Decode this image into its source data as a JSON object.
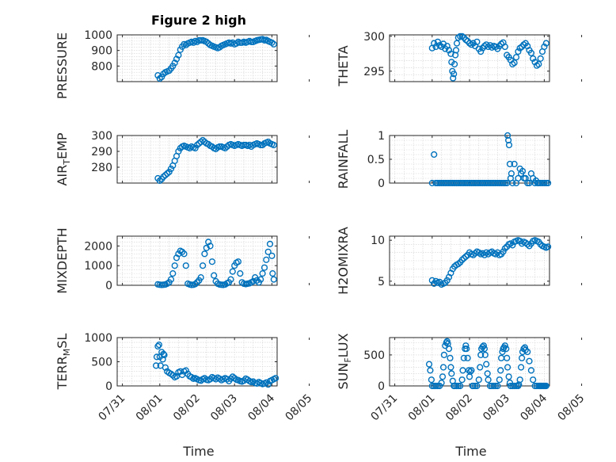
{
  "title": "Figure 2 high",
  "xlabel": "Time",
  "x_ticks": [
    "07/31",
    "08/01",
    "08/02",
    "08/03",
    "08/04",
    "08/05"
  ],
  "colors": {
    "marker": "#0072bd",
    "axes": "#262626",
    "grid": "#d2d2d2"
  },
  "chart_data": [
    {
      "type": "scatter",
      "panel": "left-1",
      "ylabel": "PRESSURE",
      "xlim": [
        -0.14,
        4.14
      ],
      "ylim": [
        700,
        1000
      ],
      "yticks": [
        800,
        900,
        1000
      ],
      "ytick_labels": [
        "800",
        "900",
        "1000"
      ],
      "x_tick_labels_shown": false,
      "grid": true,
      "x": [
        0.95,
        1.0,
        1.05,
        1.1,
        1.15,
        1.2,
        1.25,
        1.3,
        1.35,
        1.4,
        1.45,
        1.5,
        1.55,
        1.6,
        1.65,
        1.7,
        1.75,
        1.8,
        1.85,
        1.9,
        1.95,
        2.0,
        2.05,
        2.1,
        2.15,
        2.2,
        2.25,
        2.3,
        2.35,
        2.4,
        2.45,
        2.5,
        2.55,
        2.6,
        2.65,
        2.7,
        2.75,
        2.8,
        2.85,
        2.9,
        2.95,
        3.0,
        3.05,
        3.1,
        3.15,
        3.2,
        3.25,
        3.3,
        3.35,
        3.4,
        3.45,
        3.5,
        3.55,
        3.6,
        3.65,
        3.7,
        3.75,
        3.8,
        3.85,
        3.9,
        3.95,
        4.0,
        4.05
      ],
      "y": [
        740,
        720,
        730,
        750,
        760,
        765,
        770,
        785,
        800,
        820,
        845,
        870,
        905,
        925,
        940,
        935,
        945,
        950,
        955,
        950,
        960,
        955,
        965,
        965,
        965,
        960,
        955,
        945,
        935,
        930,
        925,
        920,
        915,
        920,
        930,
        935,
        940,
        945,
        950,
        945,
        950,
        940,
        945,
        955,
        950,
        950,
        955,
        950,
        955,
        960,
        955,
        955,
        960,
        965,
        968,
        970,
        972,
        965,
        968,
        960,
        955,
        950,
        940
      ]
    },
    {
      "type": "scatter",
      "panel": "right-1",
      "ylabel": "THETA",
      "xlim": [
        -0.14,
        4.14
      ],
      "ylim": [
        293.5,
        300.2
      ],
      "yticks": [
        295,
        300
      ],
      "ytick_labels": [
        "295",
        "300"
      ],
      "x_tick_labels_shown": false,
      "grid": true,
      "x": [
        1.0,
        1.05,
        1.1,
        1.15,
        1.2,
        1.25,
        1.3,
        1.35,
        1.4,
        1.45,
        1.5,
        1.52,
        1.54,
        1.56,
        1.58,
        1.6,
        1.62,
        1.64,
        1.66,
        1.7,
        1.75,
        1.8,
        1.85,
        1.9,
        1.95,
        2.0,
        2.05,
        2.1,
        2.15,
        2.2,
        2.25,
        2.3,
        2.35,
        2.4,
        2.45,
        2.5,
        2.55,
        2.6,
        2.65,
        2.7,
        2.75,
        2.8,
        2.85,
        2.9,
        2.95,
        3.0,
        3.05,
        3.1,
        3.15,
        3.2,
        3.25,
        3.3,
        3.35,
        3.4,
        3.45,
        3.5,
        3.55,
        3.6,
        3.65,
        3.7,
        3.75,
        3.8,
        3.85,
        3.9,
        3.95,
        4.0,
        4.05
      ],
      "y": [
        298.3,
        299.0,
        298.5,
        299.2,
        298.7,
        298.5,
        298.9,
        298.2,
        298.6,
        298.0,
        297.5,
        296.3,
        295.0,
        294.0,
        294.6,
        296.0,
        297.3,
        298.0,
        299.0,
        299.8,
        300.0,
        300.0,
        299.8,
        299.5,
        299.3,
        299.0,
        298.8,
        299.0,
        298.6,
        299.2,
        298.2,
        297.8,
        298.3,
        298.6,
        298.8,
        298.5,
        298.7,
        298.4,
        298.6,
        298.5,
        298.2,
        298.6,
        298.9,
        299.1,
        298.5,
        297.3,
        297.0,
        296.6,
        296.0,
        296.2,
        297.0,
        297.8,
        298.3,
        298.5,
        298.8,
        299.0,
        298.6,
        298.0,
        297.6,
        296.8,
        296.3,
        295.8,
        296.0,
        296.8,
        297.8,
        298.5,
        299.0
      ]
    },
    {
      "type": "scatter",
      "panel": "left-2",
      "ylabel": "AIR_TEMP",
      "xlim": [
        -0.14,
        4.14
      ],
      "ylim": [
        270,
        300
      ],
      "yticks": [
        280,
        290,
        300
      ],
      "ytick_labels": [
        "280",
        "290",
        "300"
      ],
      "x_tick_labels_shown": false,
      "grid": true,
      "x": [
        0.95,
        1.0,
        1.05,
        1.1,
        1.15,
        1.2,
        1.25,
        1.3,
        1.35,
        1.4,
        1.45,
        1.5,
        1.55,
        1.6,
        1.65,
        1.7,
        1.75,
        1.8,
        1.85,
        1.9,
        1.95,
        2.0,
        2.05,
        2.1,
        2.15,
        2.2,
        2.25,
        2.3,
        2.35,
        2.4,
        2.45,
        2.5,
        2.55,
        2.6,
        2.65,
        2.7,
        2.75,
        2.8,
        2.85,
        2.9,
        2.95,
        3.0,
        3.05,
        3.1,
        3.15,
        3.2,
        3.25,
        3.3,
        3.35,
        3.4,
        3.45,
        3.5,
        3.55,
        3.6,
        3.65,
        3.7,
        3.75,
        3.8,
        3.85,
        3.9,
        3.95,
        4.0,
        4.05
      ],
      "y": [
        273,
        271.5,
        272.5,
        274,
        275,
        276,
        277,
        279,
        281,
        284,
        287,
        290,
        292,
        293,
        293.5,
        293,
        292.5,
        292,
        293,
        292.5,
        292,
        294,
        295,
        296,
        297,
        296,
        295,
        294.5,
        293.5,
        293,
        292,
        291.5,
        292.5,
        293,
        293,
        292.5,
        292,
        293,
        294,
        294.5,
        294,
        293.5,
        294,
        294.5,
        294,
        293.5,
        294,
        294,
        293.5,
        294,
        293,
        294,
        294.5,
        295,
        294.5,
        294,
        294,
        295,
        295.5,
        296,
        295,
        294.5,
        294
      ]
    },
    {
      "type": "scatter",
      "panel": "right-2",
      "ylabel": "RAINFALL",
      "xlim": [
        -0.14,
        4.14
      ],
      "ylim": [
        0,
        1
      ],
      "yticks": [
        0,
        0.5,
        1
      ],
      "ytick_labels": [
        "0",
        "0.5",
        "1"
      ],
      "x_tick_labels_shown": false,
      "grid": true,
      "x": [
        1.0,
        1.05,
        1.1,
        1.15,
        1.2,
        1.25,
        1.3,
        1.35,
        1.4,
        1.45,
        1.5,
        1.55,
        1.6,
        1.65,
        1.7,
        1.75,
        1.8,
        1.85,
        1.9,
        1.95,
        2.0,
        2.05,
        2.1,
        2.15,
        2.2,
        2.25,
        2.3,
        2.35,
        2.4,
        2.45,
        2.5,
        2.55,
        2.6,
        2.65,
        2.7,
        2.75,
        2.8,
        2.85,
        2.9,
        2.95,
        3.0,
        3.02,
        3.04,
        3.06,
        3.08,
        3.1,
        3.12,
        3.15,
        3.2,
        3.25,
        3.3,
        3.35,
        3.38,
        3.42,
        3.46,
        3.5,
        3.55,
        3.6,
        3.65,
        3.7,
        3.75,
        3.78,
        3.82,
        3.85,
        3.9,
        3.95,
        4.0,
        4.05,
        4.1
      ],
      "y": [
        0,
        0.6,
        0,
        0,
        0,
        0,
        0,
        0,
        0,
        0,
        0,
        0,
        0,
        0,
        0,
        0,
        0,
        0,
        0,
        0,
        0,
        0,
        0,
        0,
        0,
        0,
        0,
        0,
        0,
        0,
        0,
        0,
        0,
        0,
        0,
        0,
        0,
        0,
        0,
        0,
        0,
        1.0,
        0.9,
        0.8,
        0.4,
        0.1,
        0.2,
        0,
        0.4,
        0,
        0.1,
        0.3,
        0.2,
        0.25,
        0.1,
        0.1,
        0,
        0,
        0.2,
        0.1,
        0,
        0.05,
        0,
        0,
        0,
        0,
        0,
        0,
        0
      ]
    },
    {
      "type": "scatter",
      "panel": "left-3",
      "ylabel": "MIXDEPTH",
      "xlim": [
        -0.14,
        4.14
      ],
      "ylim": [
        0,
        2500
      ],
      "yticks": [
        0,
        1000,
        2000
      ],
      "ytick_labels": [
        "0",
        "1000",
        "2000"
      ],
      "x_tick_labels_shown": false,
      "grid": true,
      "x": [
        0.95,
        1.0,
        1.05,
        1.1,
        1.15,
        1.2,
        1.25,
        1.3,
        1.35,
        1.4,
        1.45,
        1.5,
        1.55,
        1.6,
        1.65,
        1.7,
        1.75,
        1.8,
        1.85,
        1.9,
        1.95,
        2.0,
        2.05,
        2.1,
        2.15,
        2.2,
        2.25,
        2.3,
        2.35,
        2.4,
        2.45,
        2.5,
        2.55,
        2.6,
        2.65,
        2.7,
        2.75,
        2.8,
        2.85,
        2.9,
        2.95,
        3.0,
        3.05,
        3.1,
        3.15,
        3.2,
        3.25,
        3.3,
        3.35,
        3.4,
        3.45,
        3.5,
        3.55,
        3.6,
        3.65,
        3.7,
        3.75,
        3.8,
        3.85,
        3.9,
        3.95,
        4.0,
        4.02,
        4.05
      ],
      "y": [
        50,
        30,
        20,
        30,
        40,
        80,
        150,
        300,
        600,
        1000,
        1400,
        1600,
        1750,
        1700,
        1600,
        1000,
        80,
        40,
        20,
        30,
        60,
        150,
        250,
        400,
        1000,
        1600,
        1900,
        2200,
        2000,
        1200,
        500,
        200,
        80,
        40,
        30,
        20,
        40,
        100,
        150,
        300,
        700,
        1000,
        1150,
        1200,
        600,
        150,
        80,
        60,
        80,
        100,
        150,
        200,
        400,
        250,
        150,
        300,
        600,
        900,
        1300,
        1700,
        2100,
        1500,
        600,
        300
      ]
    },
    {
      "type": "scatter",
      "panel": "right-3",
      "ylabel": "H2OMIXRA",
      "xlim": [
        -0.14,
        4.14
      ],
      "ylim": [
        4.5,
        10.5
      ],
      "yticks": [
        5,
        10
      ],
      "ytick_labels": [
        "5",
        "10"
      ],
      "x_tick_labels_shown": false,
      "grid": true,
      "x": [
        1.0,
        1.05,
        1.1,
        1.15,
        1.2,
        1.25,
        1.3,
        1.35,
        1.4,
        1.45,
        1.5,
        1.55,
        1.6,
        1.65,
        1.7,
        1.75,
        1.8,
        1.85,
        1.9,
        1.95,
        2.0,
        2.05,
        2.1,
        2.15,
        2.2,
        2.25,
        2.3,
        2.35,
        2.4,
        2.45,
        2.5,
        2.55,
        2.6,
        2.65,
        2.7,
        2.75,
        2.8,
        2.85,
        2.9,
        2.95,
        3.0,
        3.05,
        3.1,
        3.15,
        3.2,
        3.25,
        3.3,
        3.35,
        3.4,
        3.45,
        3.5,
        3.55,
        3.6,
        3.65,
        3.7,
        3.75,
        3.8,
        3.85,
        3.9,
        3.95,
        4.0,
        4.05,
        4.1
      ],
      "y": [
        5.1,
        4.7,
        5.0,
        4.8,
        4.9,
        4.6,
        4.7,
        4.8,
        5.1,
        5.5,
        6.0,
        6.5,
        6.8,
        7.0,
        7.1,
        7.3,
        7.6,
        7.8,
        8.0,
        8.2,
        8.5,
        8.3,
        8.2,
        8.4,
        8.6,
        8.5,
        8.3,
        8.4,
        8.2,
        8.5,
        8.3,
        8.5,
        8.6,
        8.4,
        8.3,
        8.5,
        8.2,
        8.3,
        8.6,
        9.0,
        9.2,
        9.5,
        9.6,
        9.4,
        9.8,
        9.9,
        10.0,
        9.9,
        9.6,
        9.8,
        9.7,
        9.5,
        9.3,
        9.6,
        9.9,
        10.0,
        9.9,
        9.8,
        9.5,
        9.3,
        9.2,
        9.1,
        9.2
      ]
    },
    {
      "type": "scatter",
      "panel": "left-4",
      "ylabel": "TERR_MSL",
      "xlim": [
        -0.14,
        4.14
      ],
      "ylim": [
        0,
        1000
      ],
      "yticks": [
        0,
        500,
        1000
      ],
      "ytick_labels": [
        "0",
        "500",
        "1000"
      ],
      "x_tick_labels_shown": true,
      "grid": true,
      "x": [
        0.9,
        0.92,
        0.95,
        0.98,
        1.0,
        1.02,
        1.05,
        1.08,
        1.1,
        1.12,
        1.15,
        1.2,
        1.25,
        1.3,
        1.35,
        1.4,
        1.45,
        1.5,
        1.55,
        1.6,
        1.65,
        1.7,
        1.75,
        1.8,
        1.85,
        1.9,
        1.95,
        2.0,
        2.05,
        2.1,
        2.15,
        2.2,
        2.25,
        2.3,
        2.35,
        2.4,
        2.45,
        2.5,
        2.55,
        2.6,
        2.65,
        2.7,
        2.75,
        2.8,
        2.85,
        2.9,
        2.95,
        3.0,
        3.05,
        3.1,
        3.15,
        3.2,
        3.25,
        3.3,
        3.35,
        3.4,
        3.45,
        3.5,
        3.55,
        3.6,
        3.65,
        3.7,
        3.75,
        3.8,
        3.85,
        3.9,
        3.95,
        4.0,
        4.05,
        4.1
      ],
      "y": [
        420,
        600,
        820,
        850,
        600,
        420,
        700,
        550,
        660,
        640,
        380,
        300,
        270,
        250,
        220,
        180,
        200,
        280,
        300,
        230,
        300,
        320,
        250,
        200,
        180,
        150,
        160,
        140,
        120,
        110,
        140,
        160,
        130,
        120,
        140,
        180,
        160,
        140,
        170,
        150,
        120,
        140,
        160,
        140,
        100,
        150,
        190,
        160,
        130,
        120,
        100,
        90,
        110,
        150,
        130,
        100,
        80,
        90,
        60,
        50,
        80,
        60,
        40,
        50,
        70,
        30,
        100,
        120,
        140,
        160
      ]
    },
    {
      "type": "scatter",
      "panel": "right-4",
      "ylabel": "SUN_FLUX",
      "xlim": [
        -0.14,
        4.14
      ],
      "ylim": [
        0,
        780
      ],
      "yticks": [
        0,
        500
      ],
      "ytick_labels": [
        "0",
        "500"
      ],
      "x_tick_labels_shown": true,
      "grid": true,
      "x": [
        0.92,
        0.95,
        0.98,
        1.0,
        1.05,
        1.1,
        1.15,
        1.2,
        1.25,
        1.28,
        1.3,
        1.32,
        1.35,
        1.38,
        1.4,
        1.42,
        1.45,
        1.48,
        1.5,
        1.52,
        1.55,
        1.58,
        1.6,
        1.65,
        1.7,
        1.75,
        1.8,
        1.82,
        1.85,
        1.88,
        1.9,
        1.92,
        1.95,
        1.98,
        2.0,
        2.02,
        2.05,
        2.08,
        2.1,
        2.15,
        2.2,
        2.25,
        2.28,
        2.3,
        2.32,
        2.35,
        2.38,
        2.4,
        2.42,
        2.45,
        2.48,
        2.5,
        2.55,
        2.6,
        2.65,
        2.7,
        2.75,
        2.8,
        2.83,
        2.85,
        2.88,
        2.9,
        2.92,
        2.95,
        2.98,
        3.0,
        3.02,
        3.05,
        3.08,
        3.1,
        3.15,
        3.2,
        3.25,
        3.3,
        3.32,
        3.35,
        3.38,
        3.4,
        3.42,
        3.45,
        3.48,
        3.5,
        3.55,
        3.6,
        3.65,
        3.7,
        3.75,
        3.8,
        3.85,
        3.88,
        3.9,
        3.92,
        3.95,
        3.98,
        4.0,
        4.02,
        4.05
      ],
      "y": [
        350,
        250,
        100,
        0,
        0,
        0,
        0,
        0,
        50,
        150,
        300,
        500,
        650,
        700,
        720,
        680,
        600,
        450,
        300,
        200,
        80,
        0,
        0,
        0,
        0,
        0,
        100,
        250,
        450,
        600,
        650,
        600,
        450,
        250,
        150,
        230,
        250,
        0,
        0,
        0,
        0,
        100,
        300,
        500,
        600,
        630,
        650,
        600,
        500,
        350,
        200,
        100,
        0,
        0,
        0,
        0,
        0,
        100,
        250,
        450,
        550,
        600,
        620,
        650,
        600,
        450,
        300,
        150,
        50,
        0,
        0,
        0,
        0,
        0,
        20,
        100,
        300,
        450,
        550,
        600,
        620,
        580,
        550,
        400,
        250,
        100,
        0,
        0,
        0,
        0,
        0,
        0,
        0,
        0,
        0,
        0,
        0
      ]
    }
  ]
}
